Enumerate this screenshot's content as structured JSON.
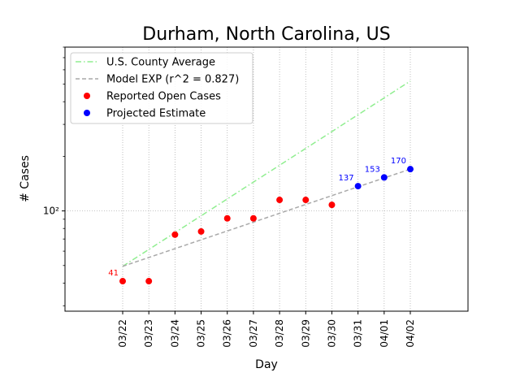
{
  "chart_data": {
    "type": "scatter",
    "title": "Durham, North Carolina, US",
    "xlabel": "Day",
    "ylabel": "# Cases",
    "yscale": "log",
    "ylim": [
      28,
      800
    ],
    "y_ticks": [
      {
        "value": 100,
        "label": "10²"
      }
    ],
    "grid": "dotted",
    "legend_position": "top-left",
    "categories": [
      "03/22",
      "03/23",
      "03/24",
      "03/25",
      "03/26",
      "03/27",
      "03/28",
      "03/29",
      "03/30",
      "03/31",
      "04/01",
      "04/02"
    ],
    "series": [
      {
        "name": "U.S. County Average",
        "kind": "line",
        "style": "dashdot",
        "color": "#90ee90",
        "x": [
          "03/22",
          "04/02"
        ],
        "y": [
          49.5,
          520
        ]
      },
      {
        "name": "Model EXP (r^2 = 0.827)",
        "kind": "line",
        "style": "dashed",
        "color": "#a9a9a9",
        "x": [
          "03/22",
          "04/02"
        ],
        "y": [
          49.5,
          170
        ]
      },
      {
        "name": "Reported Open Cases",
        "kind": "scatter",
        "color": "#ff0000",
        "x": [
          "03/22",
          "03/23",
          "03/24",
          "03/25",
          "03/26",
          "03/27",
          "03/28",
          "03/29",
          "03/30"
        ],
        "y": [
          41,
          41,
          74,
          77,
          91,
          91,
          115,
          115,
          108
        ]
      },
      {
        "name": "Projected Estimate",
        "kind": "scatter",
        "color": "#0000ff",
        "x": [
          "03/31",
          "04/01",
          "04/02"
        ],
        "y": [
          137,
          153,
          170
        ]
      }
    ],
    "annotations": [
      {
        "x": "03/22",
        "y": 41,
        "text": "41",
        "color": "#ff0000"
      },
      {
        "x": "03/31",
        "y": 137,
        "text": "137",
        "color": "#0000ff"
      },
      {
        "x": "04/01",
        "y": 153,
        "text": "153",
        "color": "#0000ff"
      },
      {
        "x": "04/02",
        "y": 170,
        "text": "170",
        "color": "#0000ff"
      }
    ]
  }
}
